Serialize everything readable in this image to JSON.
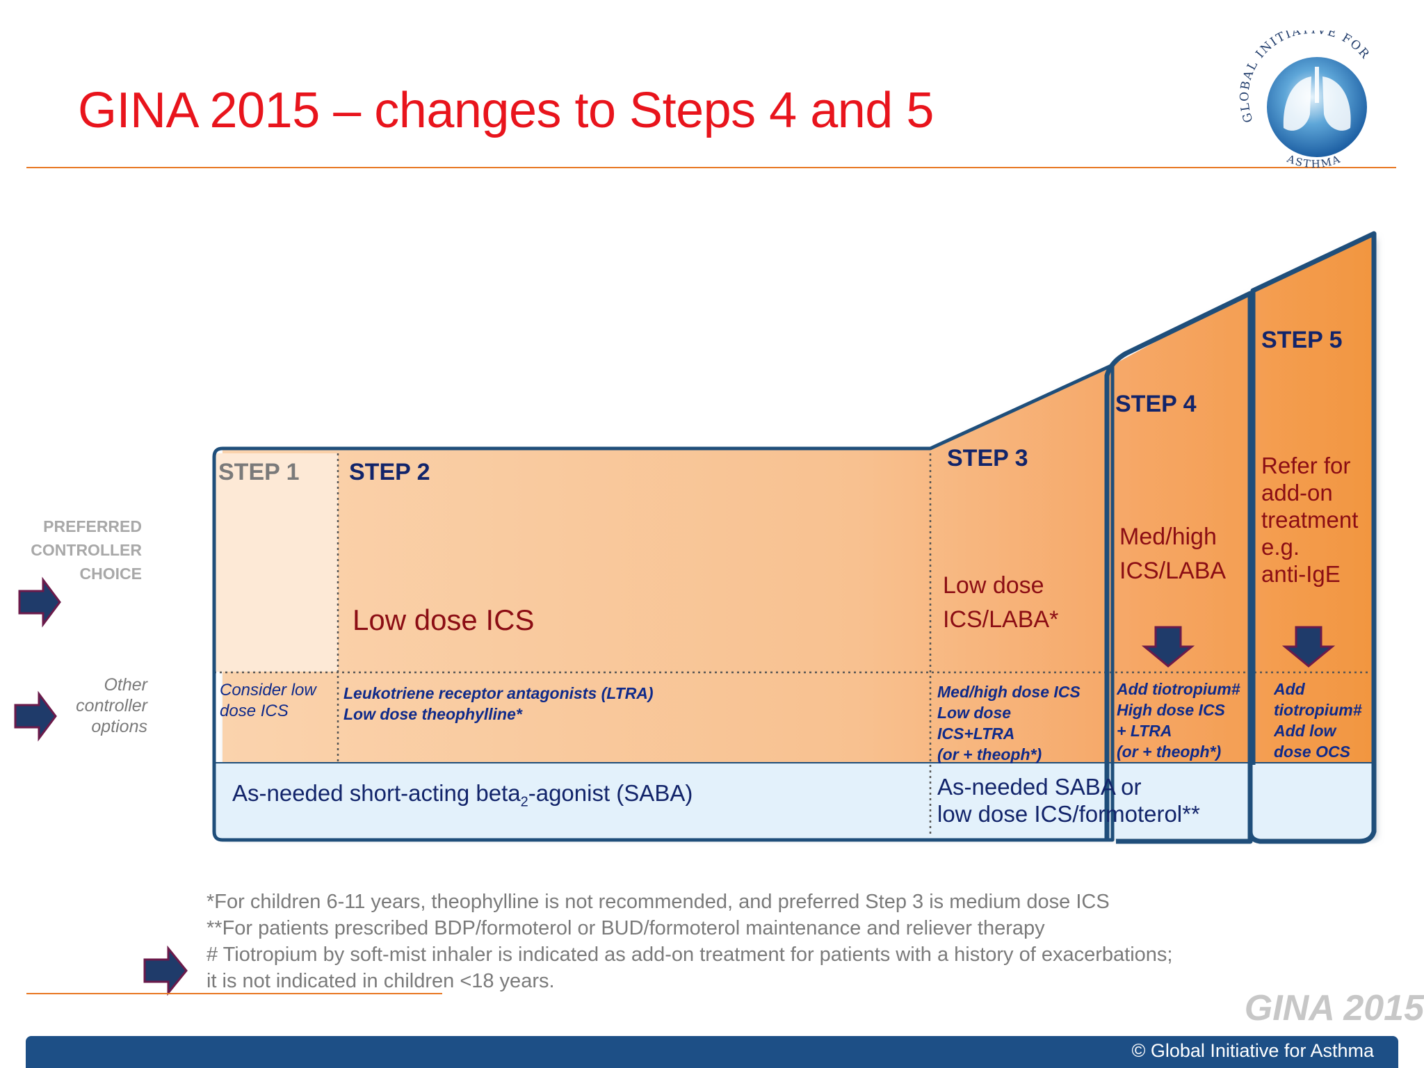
{
  "title": "GINA 2015 – changes to Steps 4 and 5",
  "logo": {
    "arc_top": "GLOBAL INITIATIVE FOR",
    "arc_bottom": "ASTHMA"
  },
  "row_labels": {
    "preferred": [
      "PREFERRED",
      "CONTROLLER",
      "CHOICE"
    ],
    "other": [
      "Other",
      "controller",
      "options"
    ]
  },
  "steps": {
    "step1": {
      "label": "STEP 1",
      "other": [
        "Consider low",
        "dose ICS"
      ]
    },
    "step2": {
      "label": "STEP 2",
      "preferred": "Low dose ICS",
      "other": [
        "Leukotriene receptor antagonists (LTRA)",
        "Low dose theophylline*"
      ]
    },
    "step3": {
      "label": "STEP 3",
      "preferred": [
        "Low dose",
        "ICS/LABA*"
      ],
      "other": [
        "Med/high dose ICS",
        "Low dose",
        "ICS+LTRA",
        "(or + theoph*)"
      ]
    },
    "step4": {
      "label": "STEP 4",
      "preferred": [
        "Med/high",
        "ICS/LABA"
      ],
      "other": [
        "Add tiotropium#",
        "High dose ICS",
        "+ LTRA",
        "(or + theoph*)"
      ]
    },
    "step5": {
      "label": "STEP 5",
      "preferred": [
        "Refer for",
        "add-on",
        "treatment",
        "e.g.",
        "anti-IgE"
      ],
      "other": [
        "Add",
        "tiotropium#",
        "Add low",
        "dose OCS"
      ]
    }
  },
  "reliever": {
    "left_prefix": "As-needed  short-acting beta",
    "left_sub": "2",
    "left_suffix": "-agonist (SABA)",
    "right": [
      "As-needed  SABA or",
      "low dose ICS/formoterol**"
    ]
  },
  "footnotes": [
    "*For children 6-11 years, theophylline   is not recommended, and preferred Step 3 is medium dose ICS",
    "**For patients prescribed BDP/formoterol or BUD/formoterol maintenance and reliever therapy",
    "# Tiotropium by soft-mist inhaler is indicated as add-on treatment for patients with a history of exacerbations;",
    "it is not indicated in children <18 years."
  ],
  "watermark": "GINA 2015",
  "copyright": "© Global Initiative for Asthma",
  "colors": {
    "title_red": "#e8141c",
    "accent_orange": "#e87722",
    "outline_navy": "#1f4e7a",
    "arrow_navy": "#1f3b6a",
    "arrow_border": "#6b1a4a",
    "reliever_blue": "#e3f1fb",
    "bottom_bar": "#1d4f86"
  }
}
